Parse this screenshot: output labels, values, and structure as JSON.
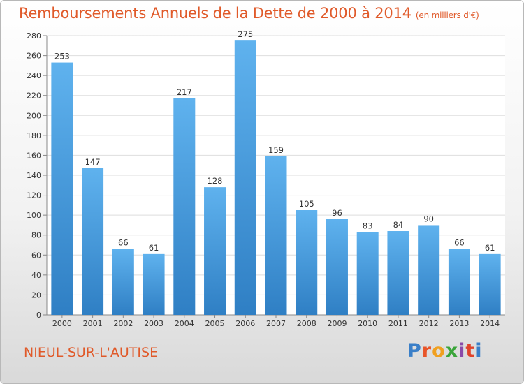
{
  "title": "Remboursements Annuels de la Dette de 2000 à 2014",
  "unit": "(en milliers d'€)",
  "town": "NIEUL-SUR-L'AUTISE",
  "logo": "Proxiti",
  "colors": {
    "bar": "#4a9de0",
    "title": "#e05a2a",
    "grid": "#dedede"
  },
  "chart_data": {
    "type": "bar",
    "categories": [
      "2000",
      "2001",
      "2002",
      "2003",
      "2004",
      "2005",
      "2006",
      "2007",
      "2008",
      "2009",
      "2010",
      "2011",
      "2012",
      "2013",
      "2014"
    ],
    "values": [
      253,
      147,
      66,
      61,
      217,
      128,
      275,
      159,
      105,
      96,
      83,
      84,
      90,
      66,
      61
    ],
    "title": "Remboursements Annuels de la Dette de 2000 à 2014",
    "xlabel": "",
    "ylabel": "",
    "ylim": [
      0,
      280
    ],
    "ytick_step": 20,
    "grid": true,
    "legend": "none"
  }
}
